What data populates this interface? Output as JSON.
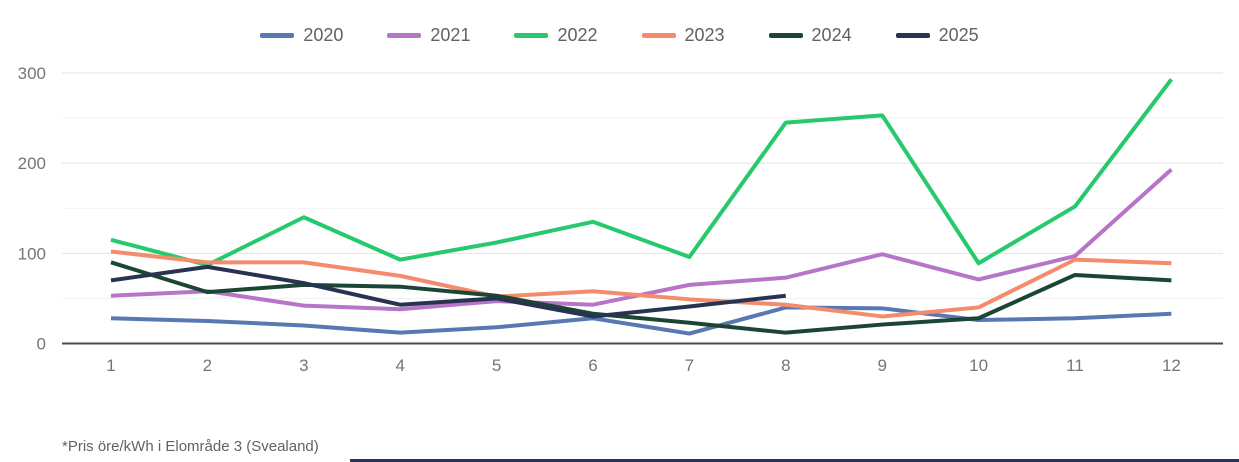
{
  "footnote": "*Pris öre/kWh i Elområde 3 (Svealand)",
  "colors": {
    "grid_major": "#e3e3e3",
    "grid_minor": "#f1f1f1",
    "axis_line": "#4a4a4a",
    "tick_label": "#757575",
    "legend_label": "#616161"
  },
  "chart_data": {
    "type": "line",
    "title": "",
    "xlabel": "",
    "ylabel": "",
    "x": [
      1,
      2,
      3,
      4,
      5,
      6,
      7,
      8,
      9,
      10,
      11,
      12
    ],
    "ylim": [
      0,
      300
    ],
    "yticks": [
      0,
      100,
      200,
      300
    ],
    "minor_gridlines": [
      50,
      150,
      250
    ],
    "grid": true,
    "legend_position": "top",
    "series": [
      {
        "name": "2020",
        "color": "#5878b3",
        "values": [
          28,
          25,
          20,
          12,
          18,
          28,
          11,
          40,
          39,
          26,
          28,
          33
        ]
      },
      {
        "name": "2021",
        "color": "#b775c7",
        "values": [
          53,
          58,
          42,
          38,
          47,
          43,
          65,
          73,
          99,
          71,
          97,
          193
        ]
      },
      {
        "name": "2022",
        "color": "#27c96d",
        "values": [
          115,
          87,
          140,
          93,
          112,
          135,
          96,
          245,
          253,
          89,
          152,
          293
        ]
      },
      {
        "name": "2023",
        "color": "#f58b6d",
        "values": [
          102,
          90,
          90,
          75,
          52,
          58,
          49,
          43,
          30,
          40,
          93,
          89
        ]
      },
      {
        "name": "2024",
        "color": "#1b4635",
        "values": [
          90,
          57,
          65,
          63,
          53,
          33,
          23,
          12,
          21,
          28,
          76,
          70
        ]
      },
      {
        "name": "2025",
        "color": "#283352",
        "values": [
          70,
          85,
          67,
          43,
          50,
          30,
          41,
          53,
          null,
          null,
          null,
          null
        ]
      }
    ]
  }
}
